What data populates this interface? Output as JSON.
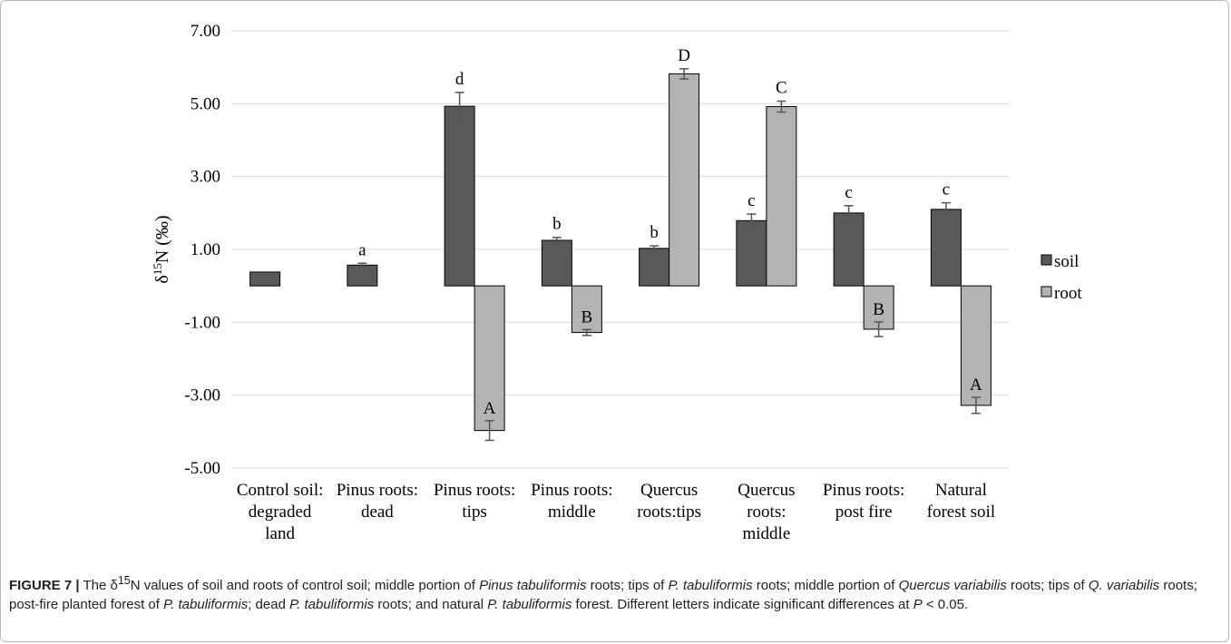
{
  "chart_data": {
    "type": "bar",
    "categories": [
      [
        "Control soil:",
        "degraded",
        "land"
      ],
      [
        "Pinus roots:",
        "dead"
      ],
      [
        "Pinus roots:",
        "tips"
      ],
      [
        "Pinus roots:",
        "middle"
      ],
      [
        "Quercus",
        "roots:tips"
      ],
      [
        "Quercus",
        "roots:",
        "middle"
      ],
      [
        "Pinus roots:",
        "post fire"
      ],
      [
        "Natural",
        "forest soil"
      ]
    ],
    "series": [
      {
        "name": "soil",
        "color": "#595959",
        "values": [
          0.38,
          0.57,
          4.93,
          1.25,
          1.03,
          1.79,
          2.0,
          2.1
        ],
        "errors": [
          0,
          0.05,
          0.38,
          0.08,
          0.07,
          0.18,
          0.2,
          0.18
        ],
        "letters": [
          "",
          "a",
          "d",
          "b",
          "b",
          "c",
          "c",
          "c"
        ]
      },
      {
        "name": "root",
        "color": "#b3b3b3",
        "values": [
          null,
          null,
          -3.97,
          -1.28,
          5.82,
          4.92,
          -1.19,
          -3.28
        ],
        "errors": [
          0,
          0,
          0.27,
          0.08,
          0.14,
          0.15,
          0.2,
          0.22
        ],
        "letters": [
          "",
          "",
          "A",
          "B",
          "D",
          "C",
          "B",
          "A"
        ]
      }
    ],
    "ylim": [
      -5,
      7
    ],
    "yticks": [
      7,
      5,
      3,
      1,
      -1,
      -3,
      -5
    ],
    "ytick_labels": [
      "7.00",
      "5.00",
      "3.00",
      "1.00",
      "-1.00",
      "-3.00",
      "-5.00"
    ],
    "ylabel": "δ15N (‰)",
    "xlabel": "",
    "grid": true,
    "legend_position": "right"
  },
  "caption": {
    "fig": "FIGURE 7 |",
    "t1": " The δ",
    "sup1": "15",
    "t2": "N values of soil and roots of control soil; middle portion of ",
    "i1": "Pinus tabuliformis",
    "t3": " roots; tips of ",
    "i2": "P. tabuliformis",
    "t4": " roots; middle portion of ",
    "i3": "Quercus variabilis",
    "t5": " roots; tips of ",
    "i4": "Q. variabilis",
    "t6": " roots; post-fire planted forest of ",
    "i5": "P. tabuliformis",
    "t7": "; dead ",
    "i6": "P. tabuliformis",
    "t8": " roots; and natural ",
    "i7": "P. tabuliformis",
    "t9": " forest. Different letters indicate significant differences at ",
    "i8": "P",
    "t10": " < 0.05."
  }
}
